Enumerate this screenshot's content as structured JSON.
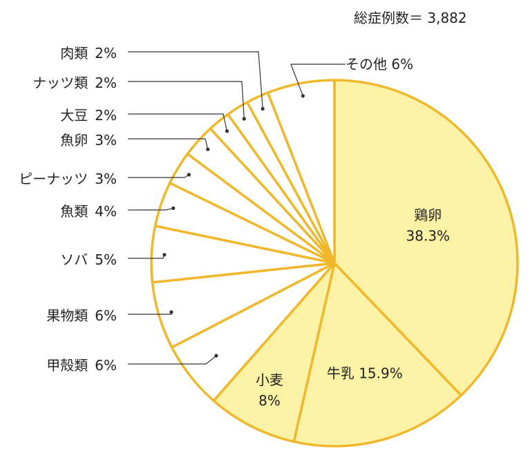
{
  "total_label": "総症例数＝ 3,882",
  "colors": {
    "highlight": "#fbf2a6",
    "plain": "#ffffff",
    "stroke": "#f0b72a",
    "leader": "#333333"
  },
  "chart_data": {
    "type": "pie",
    "title": "",
    "start_angle_deg": 0,
    "direction": "clockwise",
    "slices": [
      {
        "label": "鶏卵",
        "value": 38.3,
        "value_text": "38.3%",
        "highlight": true,
        "label_mode": "inside-two-line"
      },
      {
        "label": "牛乳",
        "value": 15.9,
        "value_text": "15.9%",
        "highlight": true,
        "label_mode": "inside-one-line"
      },
      {
        "label": "小麦",
        "value": 8,
        "value_text": "8%",
        "highlight": true,
        "label_mode": "inside-two-line"
      },
      {
        "label": "甲殻類",
        "value": 6,
        "value_text": "6%",
        "highlight": false,
        "label_mode": "outside-left"
      },
      {
        "label": "果物類",
        "value": 6,
        "value_text": "6%",
        "highlight": false,
        "label_mode": "outside-left"
      },
      {
        "label": "ソバ",
        "value": 5,
        "value_text": "5%",
        "highlight": false,
        "label_mode": "outside-left"
      },
      {
        "label": "魚類",
        "value": 4,
        "value_text": "4%",
        "highlight": false,
        "label_mode": "outside-left"
      },
      {
        "label": "ピーナッツ",
        "value": 3,
        "value_text": "3%",
        "highlight": false,
        "label_mode": "outside-left"
      },
      {
        "label": "魚卵",
        "value": 3,
        "value_text": "3%",
        "highlight": false,
        "label_mode": "outside-left"
      },
      {
        "label": "大豆",
        "value": 2,
        "value_text": "2%",
        "highlight": false,
        "label_mode": "outside-left"
      },
      {
        "label": "ナッツ類",
        "value": 2,
        "value_text": "2%",
        "highlight": false,
        "label_mode": "outside-left"
      },
      {
        "label": "肉類",
        "value": 2,
        "value_text": "2%",
        "highlight": false,
        "label_mode": "outside-left"
      },
      {
        "label": "その他",
        "value": 6,
        "value_text": "6%",
        "highlight": false,
        "label_mode": "outside-top"
      }
    ]
  }
}
